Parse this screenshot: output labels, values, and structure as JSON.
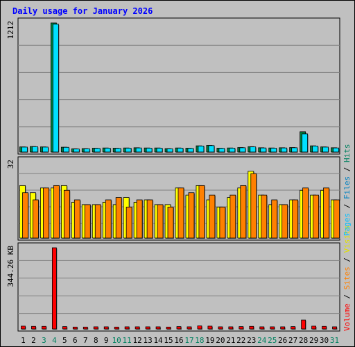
{
  "chart_data": {
    "title": "Daily usage for January 2026",
    "type": "bar",
    "days": [
      "1",
      "2",
      "3",
      "4",
      "5",
      "6",
      "7",
      "8",
      "9",
      "10",
      "11",
      "12",
      "13",
      "14",
      "15",
      "16",
      "17",
      "18",
      "19",
      "20",
      "21",
      "22",
      "23",
      "24",
      "25",
      "26",
      "27",
      "28",
      "29",
      "30",
      "31"
    ],
    "weekend_days": [
      "3",
      "4",
      "10",
      "11",
      "17",
      "18",
      "24",
      "25",
      "31"
    ],
    "panels": [
      {
        "id": "hits-files",
        "ymax_label": "1212",
        "ymax": 1212,
        "series": [
          {
            "name": "Hits",
            "color": "#008040",
            "values": [
              48,
              52,
              48,
              1212,
              45,
              30,
              32,
              36,
              38,
              36,
              38,
              40,
              38,
              38,
              32,
              38,
              36,
              58,
              62,
              36,
              38,
              42,
              50,
              40,
              38,
              40,
              42,
              190,
              58,
              48,
              40
            ]
          },
          {
            "name": "Files",
            "color": "#00E0FF",
            "values": [
              46,
              50,
              46,
              1200,
              44,
              28,
              30,
              34,
              36,
              34,
              36,
              38,
              36,
              36,
              30,
              36,
              34,
              56,
              60,
              34,
              36,
              40,
              48,
              38,
              36,
              38,
              40,
              170,
              56,
              46,
              38
            ]
          }
        ]
      },
      {
        "id": "pages-visits",
        "ymax_label": "32",
        "ymax": 32,
        "series": [
          {
            "name": "Pages",
            "color": "#00D0FF",
            "values": [
              0,
              0,
              0,
              0,
              0,
              0,
              0,
              0,
              0,
              0,
              0,
              0,
              0,
              0,
              0,
              0,
              0,
              0,
              0,
              0,
              0,
              0,
              0,
              0,
              0,
              0,
              0,
              0,
              0,
              0,
              0
            ]
          },
          {
            "name": "Visits",
            "color": "#FFFF00",
            "values": [
              22,
              19,
              21,
              21,
              22,
              15,
              14,
              14,
              15,
              14,
              17,
              15,
              16,
              14,
              14,
              21,
              18,
              22,
              16,
              13,
              17,
              21,
              28,
              18,
              14,
              14,
              16,
              20,
              18,
              20,
              16
            ]
          },
          {
            "name": "Sites",
            "color": "#FF8000",
            "values": [
              19,
              16,
              21,
              22,
              20,
              16,
              14,
              14,
              16,
              17,
              13,
              16,
              16,
              14,
              13,
              21,
              19,
              22,
              18,
              13,
              18,
              22,
              27,
              18,
              16,
              14,
              16,
              21,
              18,
              21,
              16
            ]
          }
        ]
      },
      {
        "id": "volume",
        "ymax_label": "344.26 KB",
        "ymax": 344.26,
        "series": [
          {
            "name": "Volume",
            "color": "#FF0000",
            "values": [
              12,
              11,
              11,
              344.26,
              10,
              8,
              8,
              9,
              9,
              8,
              9,
              9,
              9,
              9,
              8,
              10,
              9,
              13,
              12,
              9,
              9,
              10,
              11,
              9,
              9,
              9,
              10,
              38,
              12,
              11,
              9
            ]
          }
        ]
      }
    ],
    "legend_right_top": [
      "Hits",
      "Files",
      "Pages"
    ],
    "legend_right_bottom": [
      "Visits",
      "Sites",
      "Volume"
    ],
    "legend_separator": " / "
  }
}
